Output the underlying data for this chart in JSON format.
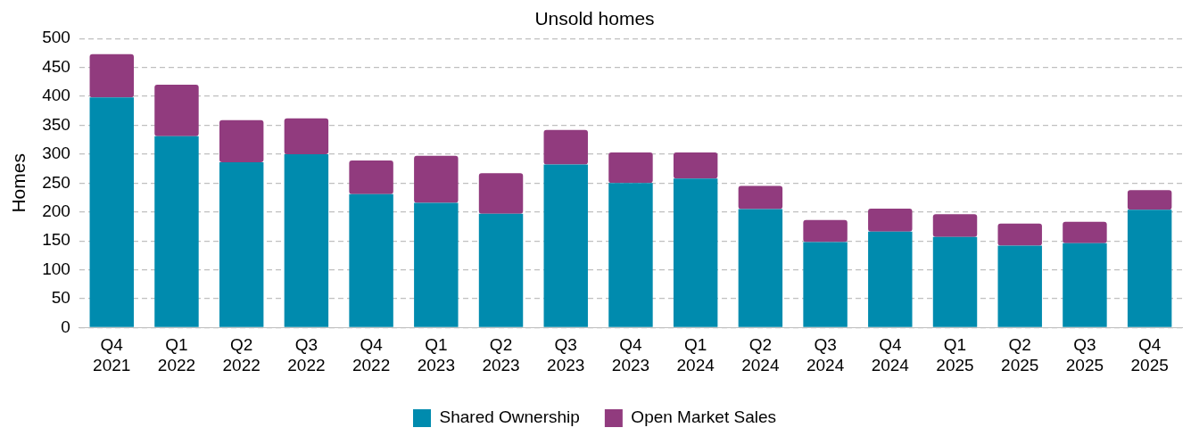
{
  "chart_data": {
    "type": "bar",
    "title": "Unsold homes",
    "ylabel": "Homes",
    "stacked": true,
    "categories": [
      "Q4 2021",
      "Q1 2022",
      "Q2 2022",
      "Q3 2022",
      "Q4 2022",
      "Q1 2023",
      "Q2 2023",
      "Q3 2023",
      "Q4 2023",
      "Q1 2024",
      "Q2 2024",
      "Q3 2024",
      "Q4 2024",
      "Q1 2025",
      "Q2 2025",
      "Q3 2025",
      "Q4 2025"
    ],
    "series": [
      {
        "name": "Shared Ownership",
        "color": "#008bae",
        "values": [
          398,
          331,
          286,
          300,
          231,
          216,
          197,
          282,
          250,
          258,
          205,
          148,
          166,
          157,
          142,
          146,
          204
        ]
      },
      {
        "name": "Open Market Sales",
        "color": "#913b7e",
        "values": [
          75,
          89,
          73,
          62,
          58,
          81,
          70,
          60,
          53,
          45,
          40,
          38,
          40,
          39,
          38,
          37,
          34
        ]
      }
    ],
    "ylim": [
      0,
      500
    ],
    "yticks": [
      0,
      50,
      100,
      150,
      200,
      250,
      300,
      350,
      400,
      450,
      500
    ],
    "grid": "y",
    "legend": "bottom"
  }
}
